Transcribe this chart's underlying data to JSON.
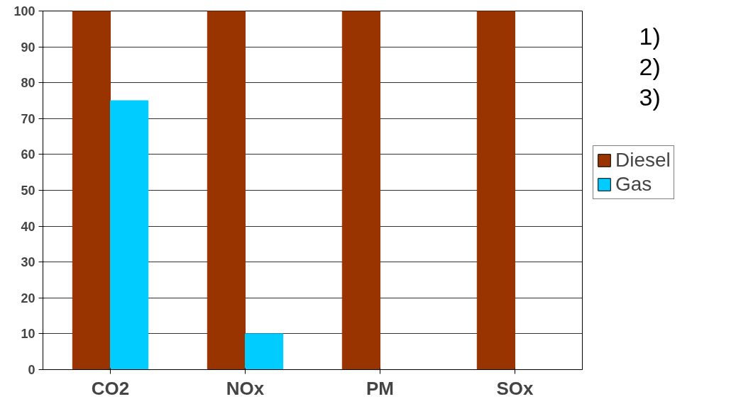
{
  "chart_data": {
    "type": "bar",
    "categories": [
      "CO2",
      "NOx",
      "PM",
      "SOx"
    ],
    "series": [
      {
        "name": "Diesel",
        "color": "#993300",
        "values": [
          100,
          100,
          100,
          100
        ]
      },
      {
        "name": "Gas",
        "color": "#00ccff",
        "values": [
          75,
          10,
          0,
          0
        ]
      }
    ],
    "ylim": [
      0,
      100
    ],
    "yticks": [
      0,
      10,
      20,
      30,
      40,
      50,
      60,
      70,
      80,
      90,
      100
    ],
    "grid": "y",
    "legend": "right",
    "annotations": [
      "1)",
      "2)",
      "3)"
    ]
  }
}
